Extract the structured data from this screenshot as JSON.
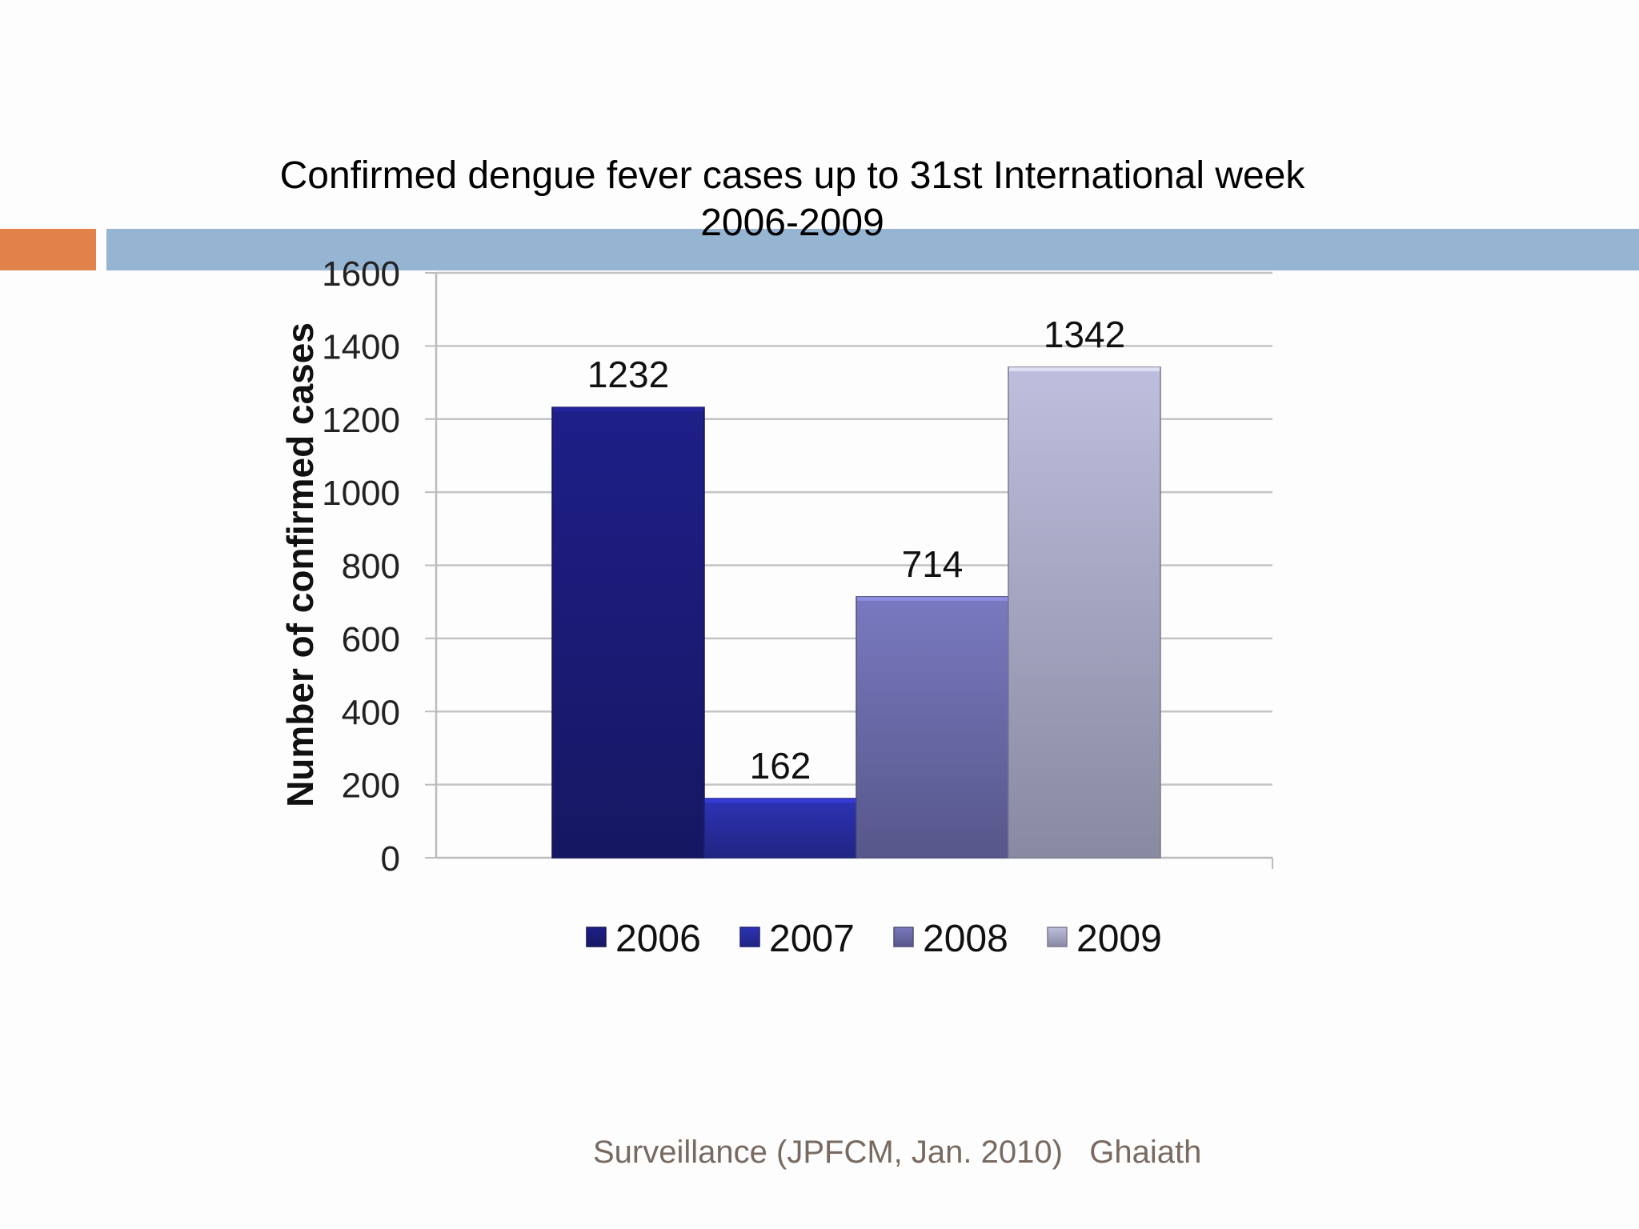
{
  "slide": {
    "title_line1": "Confirmed dengue fever cases up to 31st International week",
    "title_line2": "2006-2009",
    "footer": "Surveillance (JPFCM, Jan. 2010)   Ghaiath"
  },
  "chart_data": {
    "type": "bar",
    "title": "Confirmed dengue fever cases up to 31st International week 2006-2009",
    "xlabel": "",
    "ylabel": "Number of confirmed cases",
    "ylim": [
      0,
      1600
    ],
    "yticks": [
      0,
      200,
      400,
      600,
      800,
      1000,
      1200,
      1400,
      1600
    ],
    "grid": true,
    "legend_position": "bottom",
    "categories": [
      "2006",
      "2007",
      "2008",
      "2009"
    ],
    "values": [
      1232,
      162,
      714,
      1342
    ],
    "data_labels": [
      "1232",
      "162",
      "714",
      "1342"
    ],
    "colors": [
      "#1c1d7e",
      "#2a2fa8",
      "#7070b2",
      "#b0b0ce"
    ]
  }
}
